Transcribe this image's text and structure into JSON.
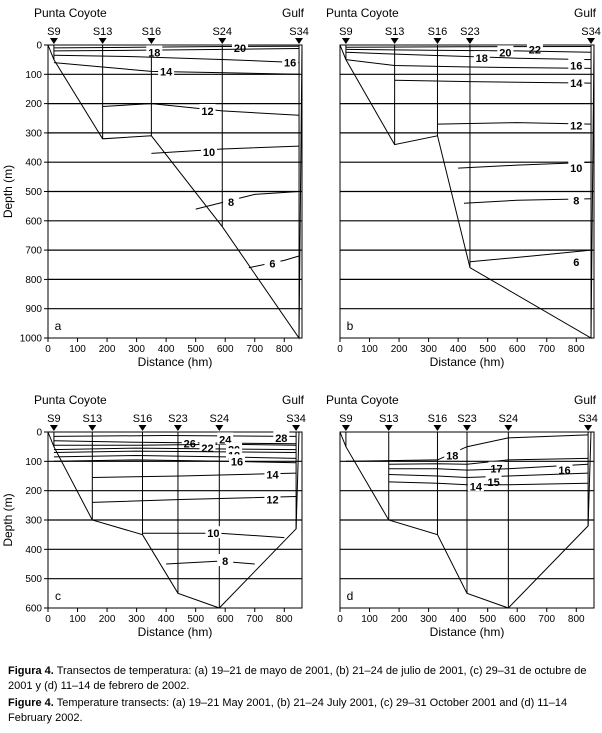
{
  "figure": {
    "x_axis_label": "Distance (hm)",
    "y_axis_label": "Depth (m)",
    "left_location": "Punta Coyote",
    "right_location": "Gulf"
  },
  "chart_data": [
    {
      "type": "line",
      "panel_letter": "a",
      "xlabel": "Distance (hm)",
      "ylabel": "Depth (m)",
      "xlim": [
        0,
        860
      ],
      "ylim": [
        1000,
        0
      ],
      "x_ticks": [
        0,
        100,
        200,
        300,
        400,
        500,
        600,
        700,
        800
      ],
      "y_ticks": [
        0,
        100,
        200,
        300,
        400,
        500,
        600,
        700,
        800,
        900,
        1000
      ],
      "left_location": "Punta Coyote",
      "right_location": "Gulf",
      "stations": [
        {
          "name": "S9",
          "x": 20,
          "bottom": 50
        },
        {
          "name": "S13",
          "x": 185,
          "bottom": 320
        },
        {
          "name": "S16",
          "x": 350,
          "bottom": 310
        },
        {
          "name": "S24",
          "x": 590,
          "bottom": 620
        },
        {
          "name": "S34",
          "x": 850,
          "bottom": 1000
        }
      ],
      "bathymetry": [
        [
          0,
          0
        ],
        [
          20,
          50
        ],
        [
          185,
          320
        ],
        [
          350,
          310
        ],
        [
          590,
          620
        ],
        [
          850,
          1000
        ],
        [
          860,
          0
        ]
      ],
      "isotherms": [
        {
          "label": "20",
          "label_x": 650,
          "label_y": 10,
          "points": [
            [
              20,
              10
            ],
            [
              300,
              8
            ],
            [
              600,
              5
            ],
            [
              850,
              4
            ]
          ]
        },
        {
          "label": "18",
          "label_x": 360,
          "label_y": 25,
          "points": [
            [
              20,
              20
            ],
            [
              300,
              18
            ],
            [
              600,
              15
            ],
            [
              850,
              12
            ]
          ]
        },
        {
          "label": "16",
          "label_x": 820,
          "label_y": 60,
          "points": [
            [
              20,
              35
            ],
            [
              300,
              40
            ],
            [
              600,
              50
            ],
            [
              850,
              60
            ]
          ]
        },
        {
          "label": "14",
          "label_x": 400,
          "label_y": 90,
          "points": [
            [
              20,
              60
            ],
            [
              185,
              75
            ],
            [
              350,
              90
            ],
            [
              600,
              95
            ],
            [
              850,
              100
            ]
          ]
        },
        {
          "label": "12",
          "label_x": 540,
          "label_y": 225,
          "points": [
            [
              185,
              210
            ],
            [
              350,
              200
            ],
            [
              590,
              225
            ],
            [
              850,
              240
            ]
          ]
        },
        {
          "label": "10",
          "label_x": 545,
          "label_y": 365,
          "points": [
            [
              350,
              370
            ],
            [
              590,
              355
            ],
            [
              850,
              345
            ]
          ]
        },
        {
          "label": "8",
          "label_x": 620,
          "label_y": 535,
          "points": [
            [
              500,
              560
            ],
            [
              700,
              510
            ],
            [
              850,
              500
            ]
          ]
        },
        {
          "label": "6",
          "label_x": 760,
          "label_y": 745,
          "points": [
            [
              680,
              760
            ],
            [
              800,
              735
            ],
            [
              850,
              720
            ]
          ]
        }
      ]
    },
    {
      "type": "line",
      "panel_letter": "b",
      "xlabel": "Distance (hm)",
      "ylabel": "",
      "xlim": [
        0,
        860
      ],
      "ylim": [
        1000,
        0
      ],
      "x_ticks": [
        0,
        100,
        200,
        300,
        400,
        500,
        600,
        700,
        800
      ],
      "y_ticks": [],
      "left_location": "Punta Coyote",
      "right_location": "Gulf",
      "stations": [
        {
          "name": "S9",
          "x": 20,
          "bottom": 50
        },
        {
          "name": "S13",
          "x": 185,
          "bottom": 340
        },
        {
          "name": "S16",
          "x": 330,
          "bottom": 310
        },
        {
          "name": "S23",
          "x": 440,
          "bottom": 760
        },
        {
          "name": "S34",
          "x": 850,
          "bottom": 1000
        }
      ],
      "bathymetry": [
        [
          0,
          0
        ],
        [
          20,
          50
        ],
        [
          185,
          340
        ],
        [
          330,
          310
        ],
        [
          440,
          760
        ],
        [
          850,
          1000
        ],
        [
          860,
          0
        ]
      ],
      "isotherms": [
        {
          "label": "22",
          "label_x": 660,
          "label_y": 15,
          "points": [
            [
              20,
              8
            ],
            [
              400,
              6
            ],
            [
              850,
              5
            ]
          ]
        },
        {
          "label": "20",
          "label_x": 560,
          "label_y": 25,
          "points": [
            [
              20,
              15
            ],
            [
              300,
              18
            ],
            [
              600,
              20
            ],
            [
              850,
              25
            ]
          ]
        },
        {
          "label": "18",
          "label_x": 480,
          "label_y": 45,
          "points": [
            [
              20,
              25
            ],
            [
              300,
              35
            ],
            [
              600,
              45
            ],
            [
              850,
              50
            ]
          ]
        },
        {
          "label": "16",
          "label_x": 800,
          "label_y": 70,
          "points": [
            [
              20,
              50
            ],
            [
              185,
              70
            ],
            [
              440,
              75
            ],
            [
              850,
              80
            ]
          ]
        },
        {
          "label": "14",
          "label_x": 800,
          "label_y": 130,
          "points": [
            [
              185,
              120
            ],
            [
              440,
              125
            ],
            [
              850,
              130
            ]
          ]
        },
        {
          "label": "12",
          "label_x": 800,
          "label_y": 275,
          "points": [
            [
              330,
              270
            ],
            [
              600,
              265
            ],
            [
              850,
              270
            ]
          ]
        },
        {
          "label": "10",
          "label_x": 800,
          "label_y": 420,
          "points": [
            [
              400,
              420
            ],
            [
              600,
              410
            ],
            [
              850,
              400
            ]
          ]
        },
        {
          "label": "8",
          "label_x": 800,
          "label_y": 530,
          "points": [
            [
              420,
              540
            ],
            [
              600,
              530
            ],
            [
              850,
              525
            ]
          ]
        },
        {
          "label": "6",
          "label_x": 800,
          "label_y": 740,
          "points": [
            [
              440,
              740
            ],
            [
              650,
              720
            ],
            [
              850,
              700
            ]
          ]
        }
      ]
    },
    {
      "type": "line",
      "panel_letter": "c",
      "xlabel": "Distance (hm)",
      "ylabel": "Depth (m)",
      "xlim": [
        0,
        860
      ],
      "ylim": [
        600,
        0
      ],
      "x_ticks": [
        0,
        100,
        200,
        300,
        400,
        500,
        600,
        700,
        800
      ],
      "y_ticks": [
        0,
        100,
        200,
        300,
        400,
        500,
        600
      ],
      "left_location": "Punta Coyote",
      "right_location": "Gulf",
      "stations": [
        {
          "name": "S9",
          "x": 20,
          "bottom": 50
        },
        {
          "name": "S13",
          "x": 150,
          "bottom": 300
        },
        {
          "name": "S16",
          "x": 320,
          "bottom": 350
        },
        {
          "name": "S23",
          "x": 440,
          "bottom": 550
        },
        {
          "name": "S24",
          "x": 580,
          "bottom": 600
        },
        {
          "name": "S34",
          "x": 840,
          "bottom": 330
        }
      ],
      "bathymetry": [
        [
          0,
          0
        ],
        [
          20,
          50
        ],
        [
          150,
          300
        ],
        [
          320,
          350
        ],
        [
          440,
          550
        ],
        [
          580,
          600
        ],
        [
          840,
          330
        ],
        [
          850,
          0
        ]
      ],
      "isotherms": [
        {
          "label": "28",
          "label_x": 790,
          "label_y": 20,
          "points": [
            [
              20,
              15
            ],
            [
              400,
              12
            ],
            [
              840,
              15
            ]
          ]
        },
        {
          "label": "26",
          "label_x": 480,
          "label_y": 40,
          "points": [
            [
              20,
              30
            ],
            [
              300,
              35
            ],
            [
              600,
              38
            ],
            [
              840,
              40
            ]
          ]
        },
        {
          "label": "24",
          "label_x": 600,
          "label_y": 25,
          "points": [
            [
              20,
              45
            ],
            [
              300,
              45
            ],
            [
              600,
              42
            ],
            [
              840,
              45
            ]
          ]
        },
        {
          "label": "22",
          "label_x": 540,
          "label_y": 55,
          "points": [
            [
              20,
              60
            ],
            [
              300,
              55
            ],
            [
              600,
              58
            ],
            [
              840,
              60
            ]
          ]
        },
        {
          "label": "20",
          "label_x": 630,
          "label_y": 60,
          "points": [
            [
              20,
              70
            ],
            [
              300,
              65
            ],
            [
              600,
              68
            ],
            [
              840,
              70
            ]
          ]
        },
        {
          "label": "18",
          "label_x": 630,
          "label_y": 80,
          "points": [
            [
              20,
              85
            ],
            [
              300,
              80
            ],
            [
              600,
              85
            ],
            [
              840,
              90
            ]
          ]
        },
        {
          "label": "16",
          "label_x": 640,
          "label_y": 100,
          "points": [
            [
              20,
              100
            ],
            [
              300,
              95
            ],
            [
              600,
              100
            ],
            [
              840,
              105
            ]
          ]
        },
        {
          "label": "14",
          "label_x": 760,
          "label_y": 145,
          "points": [
            [
              150,
              155
            ],
            [
              450,
              150
            ],
            [
              840,
              140
            ]
          ]
        },
        {
          "label": "12",
          "label_x": 760,
          "label_y": 230,
          "points": [
            [
              150,
              240
            ],
            [
              450,
              230
            ],
            [
              840,
              220
            ]
          ]
        },
        {
          "label": "10",
          "label_x": 560,
          "label_y": 345,
          "points": [
            [
              320,
              345
            ],
            [
              580,
              345
            ],
            [
              800,
              360
            ]
          ]
        },
        {
          "label": "8",
          "label_x": 600,
          "label_y": 440,
          "points": [
            [
              400,
              450
            ],
            [
              580,
              440
            ],
            [
              700,
              450
            ]
          ]
        }
      ]
    },
    {
      "type": "line",
      "panel_letter": "d",
      "xlabel": "Distance (hm)",
      "ylabel": "",
      "xlim": [
        0,
        860
      ],
      "ylim": [
        600,
        0
      ],
      "x_ticks": [
        0,
        100,
        200,
        300,
        400,
        500,
        600,
        700,
        800
      ],
      "y_ticks": [],
      "left_location": "Punta Coyote",
      "right_location": "Gulf",
      "stations": [
        {
          "name": "S9",
          "x": 20,
          "bottom": 50
        },
        {
          "name": "S13",
          "x": 165,
          "bottom": 300
        },
        {
          "name": "S16",
          "x": 330,
          "bottom": 350
        },
        {
          "name": "S23",
          "x": 430,
          "bottom": 550
        },
        {
          "name": "S24",
          "x": 570,
          "bottom": 600
        },
        {
          "name": "S34",
          "x": 840,
          "bottom": 320
        }
      ],
      "bathymetry": [
        [
          0,
          0
        ],
        [
          20,
          50
        ],
        [
          165,
          300
        ],
        [
          330,
          350
        ],
        [
          430,
          550
        ],
        [
          570,
          600
        ],
        [
          840,
          320
        ],
        [
          850,
          0
        ]
      ],
      "isotherms": [
        {
          "label": "18",
          "label_x": 380,
          "label_y": 80,
          "points": [
            [
              20,
              100
            ],
            [
              330,
              95
            ],
            [
              430,
              50
            ],
            [
              570,
              20
            ],
            [
              840,
              10
            ]
          ]
        },
        {
          "label": "17",
          "label_x": 530,
          "label_y": 125,
          "points": [
            [
              165,
              110
            ],
            [
              330,
              108
            ],
            [
              430,
              110
            ],
            [
              570,
              95
            ],
            [
              840,
              90
            ]
          ]
        },
        {
          "label": "16",
          "label_x": 760,
          "label_y": 130,
          "points": [
            [
              165,
              125
            ],
            [
              330,
              125
            ],
            [
              430,
              130
            ],
            [
              570,
              125
            ],
            [
              840,
              110
            ]
          ]
        },
        {
          "label": "15",
          "label_x": 520,
          "label_y": 170,
          "points": [
            [
              165,
              145
            ],
            [
              330,
              150
            ],
            [
              430,
              155
            ],
            [
              570,
              150
            ],
            [
              840,
              140
            ]
          ]
        },
        {
          "label": "14",
          "label_x": 460,
          "label_y": 185,
          "points": [
            [
              165,
              170
            ],
            [
              330,
              175
            ],
            [
              430,
              180
            ],
            [
              570,
              180
            ],
            [
              840,
              175
            ]
          ]
        }
      ]
    }
  ],
  "captions": {
    "spanish_label": "Figura 4.",
    "spanish_text": " Transectos de temperatura: (a) 19–21 de mayo de 2001, (b) 21–24 de julio de 2001, (c) 29–31 de octubre de 2001 y (d) 11–14 de febrero de 2002.",
    "english_label": "Figure 4.",
    "english_text": " Temperature transects: (a) 19–21 May 2001, (b) 21–24 July 2001, (c) 29–31 October 2001 and (d) 11–14 February 2002."
  }
}
